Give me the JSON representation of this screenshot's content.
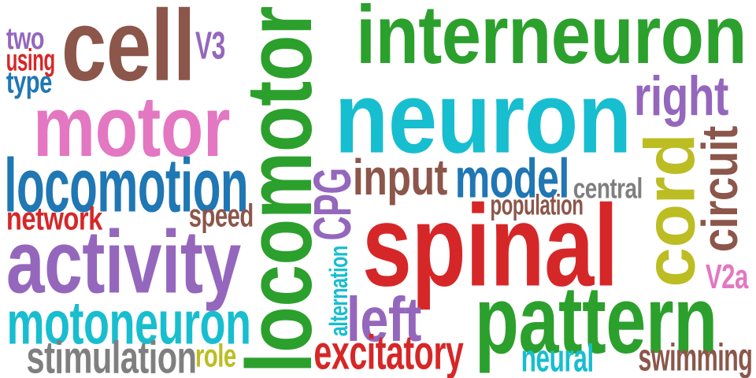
{
  "words": [
    {
      "text": "interneuron",
      "color": "#2ca02c",
      "rotated": false
    },
    {
      "text": "neuron",
      "color": "#17becf",
      "rotated": false
    },
    {
      "text": "spinal",
      "color": "#d62728",
      "rotated": false
    },
    {
      "text": "pattern",
      "color": "#2ca02c",
      "rotated": false
    },
    {
      "text": "locomotor",
      "color": "#2ca02c",
      "rotated": true
    },
    {
      "text": "cell",
      "color": "#8c564b",
      "rotated": false
    },
    {
      "text": "motor",
      "color": "#e377c2",
      "rotated": false
    },
    {
      "text": "activity",
      "color": "#9467bd",
      "rotated": false
    },
    {
      "text": "locomotion",
      "color": "#1f77b4",
      "rotated": false
    },
    {
      "text": "motoneuron",
      "color": "#17becf",
      "rotated": false
    },
    {
      "text": "stimulation",
      "color": "#7f7f7f",
      "rotated": false
    },
    {
      "text": "cord",
      "color": "#bcbd22",
      "rotated": true
    },
    {
      "text": "circuit",
      "color": "#8c564b",
      "rotated": true
    },
    {
      "text": "right",
      "color": "#9467bd",
      "rotated": false
    },
    {
      "text": "input",
      "color": "#8c564b",
      "rotated": false
    },
    {
      "text": "model",
      "color": "#1f77b4",
      "rotated": false
    },
    {
      "text": "CPG",
      "color": "#9467bd",
      "rotated": true
    },
    {
      "text": "left",
      "color": "#9467bd",
      "rotated": false
    },
    {
      "text": "excitatory",
      "color": "#d62728",
      "rotated": false
    },
    {
      "text": "neural",
      "color": "#17becf",
      "rotated": false
    },
    {
      "text": "swimming",
      "color": "#8c564b",
      "rotated": false
    },
    {
      "text": "central",
      "color": "#7f7f7f",
      "rotated": false
    },
    {
      "text": "population",
      "color": "#8c564b",
      "rotated": false
    },
    {
      "text": "alternation",
      "color": "#17becf",
      "rotated": true
    },
    {
      "text": "V2a",
      "color": "#e377c2",
      "rotated": false
    },
    {
      "text": "network",
      "color": "#d62728",
      "rotated": false
    },
    {
      "text": "speed",
      "color": "#8c564b",
      "rotated": false
    },
    {
      "text": "role",
      "color": "#bcbd22",
      "rotated": false
    },
    {
      "text": "V3",
      "color": "#9467bd",
      "rotated": false
    },
    {
      "text": "two",
      "color": "#9467bd",
      "rotated": false
    },
    {
      "text": "using",
      "color": "#d62728",
      "rotated": false
    },
    {
      "text": "type",
      "color": "#1f77b4",
      "rotated": false
    }
  ]
}
